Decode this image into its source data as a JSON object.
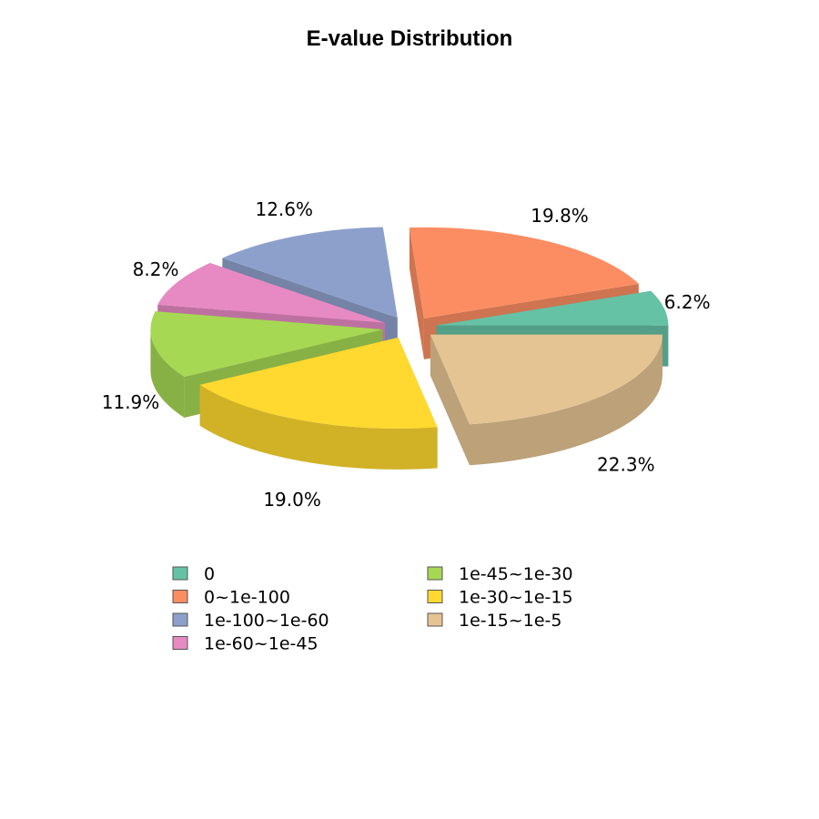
{
  "chart_data": {
    "type": "pie",
    "style": "3d-exploded",
    "title": "E-value Distribution",
    "legend_position": "bottom",
    "slices": [
      {
        "label": "0",
        "value": 6.2,
        "display": "6.2%",
        "color": "#66C2A5"
      },
      {
        "label": "0~1e-100",
        "value": 19.8,
        "display": "19.8%",
        "color": "#FC8D62"
      },
      {
        "label": "1e-100~1e-60",
        "value": 12.6,
        "display": "12.6%",
        "color": "#8DA0CB"
      },
      {
        "label": "1e-60~1e-45",
        "value": 8.2,
        "display": "8.2%",
        "color": "#E78AC3"
      },
      {
        "label": "1e-45~1e-30",
        "value": 11.9,
        "display": "11.9%",
        "color": "#A6D854"
      },
      {
        "label": "1e-30~1e-15",
        "value": 19.0,
        "display": "19.0%",
        "color": "#FFD92F"
      },
      {
        "label": "1e-15~1e-5",
        "value": 22.3,
        "display": "22.3%",
        "color": "#E5C494"
      }
    ]
  }
}
